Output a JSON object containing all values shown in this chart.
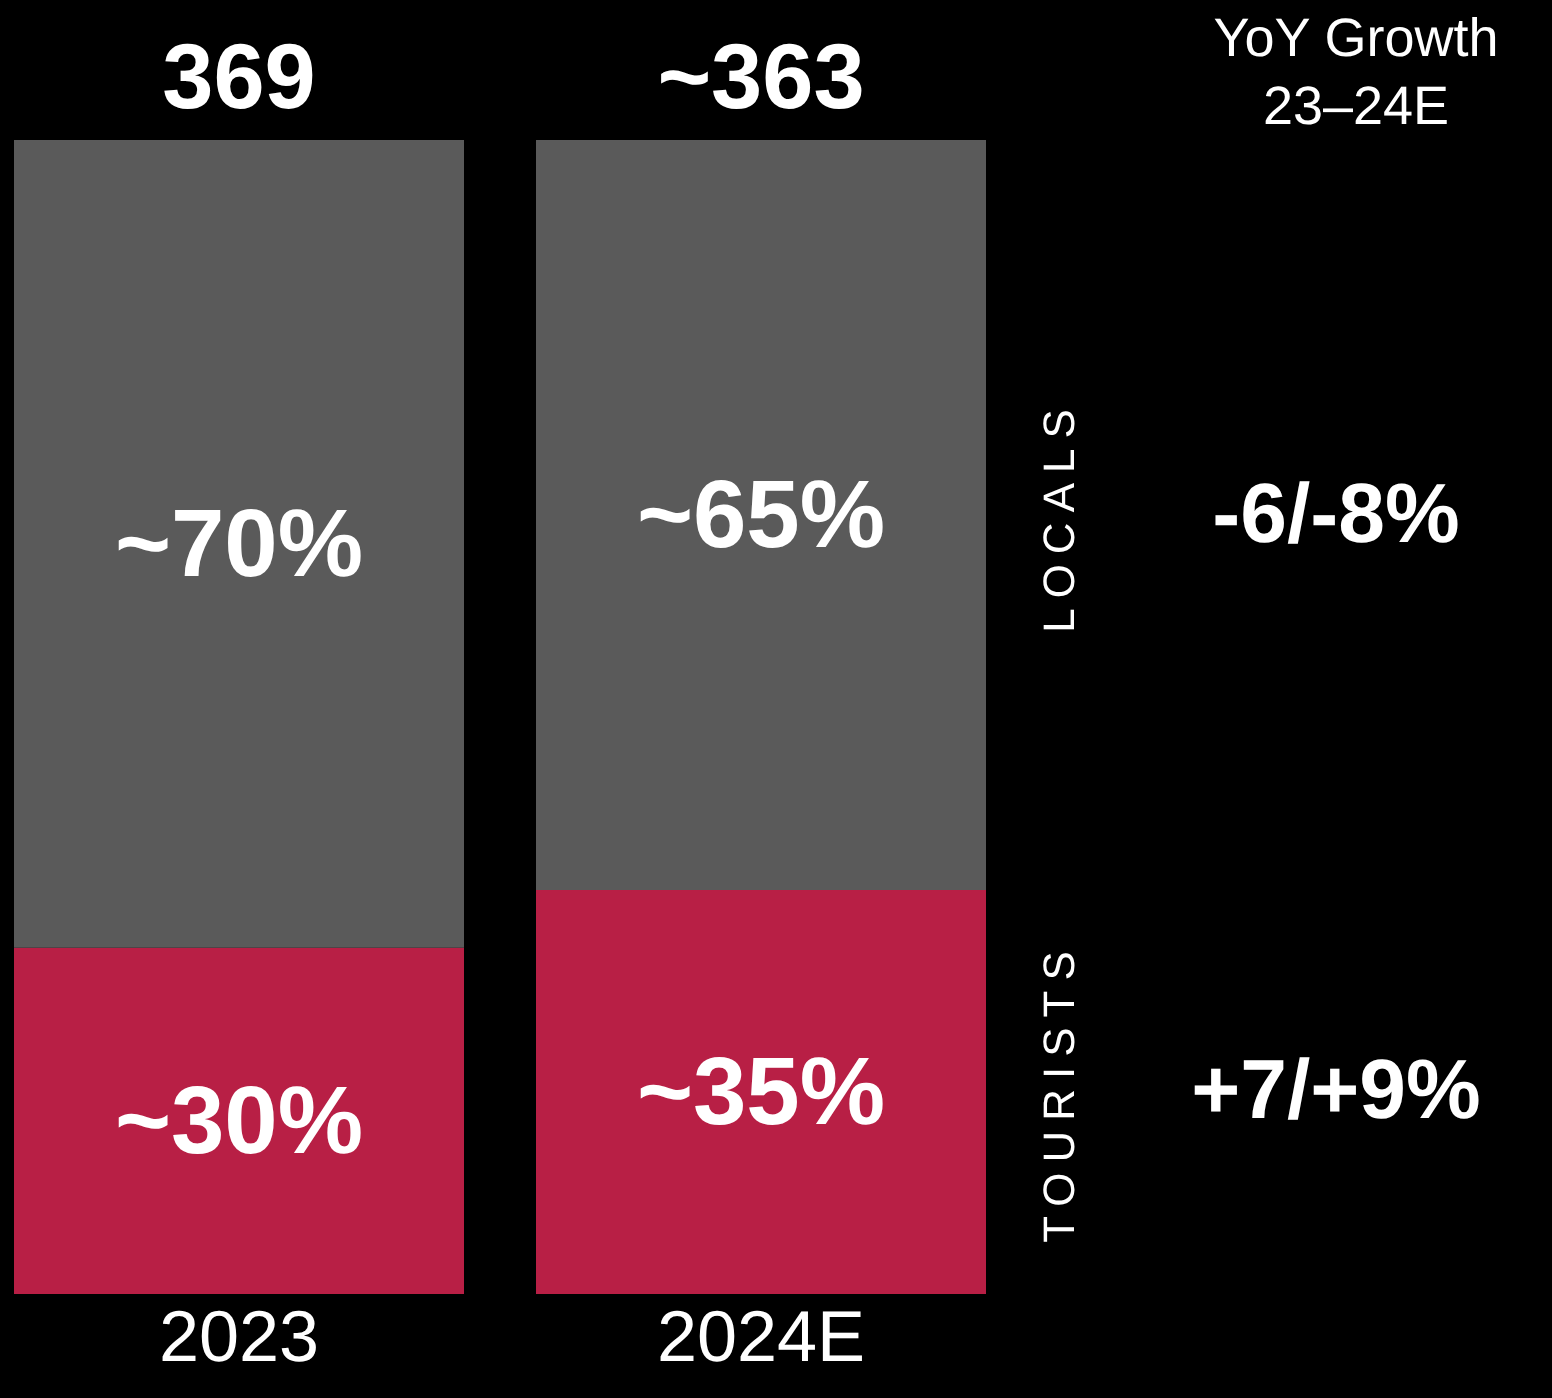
{
  "chart_data": {
    "type": "bar",
    "stacked": true,
    "categories": [
      "2023",
      "2024E"
    ],
    "series": [
      {
        "name": "TOURISTS",
        "color": "#b81f45",
        "values": [
          30,
          35
        ],
        "value_labels": [
          "~30%",
          "~35%"
        ]
      },
      {
        "name": "LOCALS",
        "color": "#5a5a5a",
        "values": [
          70,
          65
        ],
        "value_labels": [
          "~70%",
          "~65%"
        ]
      }
    ],
    "annotations": [
      "YoY Growth\n23–24E",
      "+7/+9%",
      "-6/-8%",
      {
        "text": "369",
        "x": "2023",
        "y": 100
      },
      {
        "text": "~363",
        "x": "2024E",
        "y": 100
      }
    ]
  }
}
